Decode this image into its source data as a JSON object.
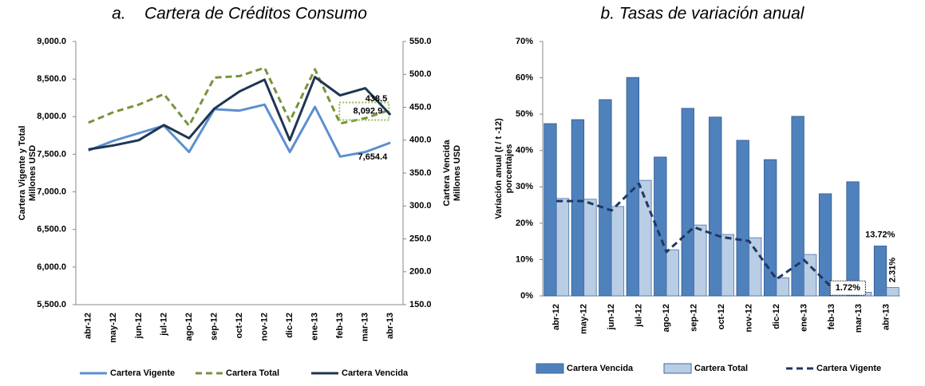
{
  "chart_data": [
    {
      "type": "line",
      "title": "a.    Cartera de Créditos Consumo",
      "categories": [
        "abr-12",
        "may-12",
        "jun-12",
        "jul-12",
        "ago-12",
        "sep-12",
        "oct-12",
        "nov-12",
        "dic-12",
        "ene-13",
        "feb-13",
        "mar-13",
        "abr-13"
      ],
      "ylabel": [
        "Cartera Vigente y Total",
        "Millones USD"
      ],
      "y2label": [
        "Cartera Vencida",
        "Millones USD"
      ],
      "ylim": [
        5500,
        9000
      ],
      "yticks": [
        {
          "value": 5500,
          "label": "5,500.0"
        },
        {
          "value": 6000,
          "label": "6,000.0"
        },
        {
          "value": 6500,
          "label": "6,500.0"
        },
        {
          "value": 7000,
          "label": "7,000.0"
        },
        {
          "value": 7500,
          "label": "7,500.0"
        },
        {
          "value": 8000,
          "label": "8,000.0"
        },
        {
          "value": 8500,
          "label": "8,500.0"
        },
        {
          "value": 9000,
          "label": "9,000.0"
        }
      ],
      "y2lim": [
        150,
        550
      ],
      "y2ticks": [
        {
          "value": 150,
          "label": "150.0"
        },
        {
          "value": 200,
          "label": "200.0"
        },
        {
          "value": 250,
          "label": "250.0"
        },
        {
          "value": 300,
          "label": "300.0"
        },
        {
          "value": 350,
          "label": "350.0"
        },
        {
          "value": 400,
          "label": "400.0"
        },
        {
          "value": 450,
          "label": "450.0"
        },
        {
          "value": 500,
          "label": "500.0"
        },
        {
          "value": 550,
          "label": "550.0"
        }
      ],
      "grid": false,
      "legend": "bottom",
      "series": [
        {
          "name": "Cartera Vigente",
          "color": "#5b8fd0",
          "dash": false,
          "values": [
            7550,
            7680,
            7780,
            7880,
            7530,
            8100,
            8080,
            8160,
            7530,
            8130,
            7470,
            7530,
            7654.4
          ],
          "value_labels": [
            null,
            null,
            null,
            null,
            null,
            null,
            null,
            null,
            null,
            null,
            null,
            null,
            "7,654.4"
          ]
        },
        {
          "name": "Cartera Total",
          "color": "#77933c",
          "dash": true,
          "values": [
            7920,
            8060,
            8160,
            8300,
            7880,
            8520,
            8540,
            8650,
            7940,
            8630,
            7910,
            7980,
            8092.9
          ],
          "value_labels": [
            null,
            null,
            null,
            null,
            null,
            null,
            null,
            null,
            null,
            null,
            null,
            null,
            "8,092.9"
          ]
        },
        {
          "name": "Cartera Vencida",
          "color": "#1f3552",
          "dash": false,
          "axis": "y2",
          "values": [
            386,
            392,
            400,
            423,
            403,
            448,
            474,
            492,
            400,
            496,
            468,
            479,
            438.5
          ],
          "value_labels": [
            null,
            null,
            null,
            null,
            null,
            null,
            null,
            null,
            null,
            null,
            null,
            null,
            "438.5"
          ]
        }
      ]
    },
    {
      "type": "bar",
      "title": "b. Tasas de variación anual",
      "categories": [
        "abr-12",
        "may-12",
        "jun-12",
        "jul-12",
        "ago-12",
        "sep-12",
        "oct-12",
        "nov-12",
        "dic-12",
        "ene-13",
        "feb-13",
        "mar-13",
        "abr-13"
      ],
      "ylabel": [
        "Variación anual (t / t -12)",
        "porcentajes"
      ],
      "ylim": [
        0,
        70
      ],
      "yticks": [
        {
          "value": 0,
          "label": "0%"
        },
        {
          "value": 10,
          "label": "10%"
        },
        {
          "value": 20,
          "label": "20%"
        },
        {
          "value": 30,
          "label": "30%"
        },
        {
          "value": 40,
          "label": "40%"
        },
        {
          "value": 50,
          "label": "50%"
        },
        {
          "value": 60,
          "label": "60%"
        },
        {
          "value": 70,
          "label": "70%"
        }
      ],
      "grid": false,
      "legend": "bottom",
      "series": [
        {
          "name": "Cartera Vencida",
          "color": "#4f81bd",
          "type": "bar",
          "values": [
            47.4,
            48.5,
            54,
            60.1,
            38.2,
            51.6,
            49.2,
            42.8,
            37.5,
            49.4,
            28.1,
            31.4,
            13.72
          ],
          "value_labels": [
            null,
            null,
            null,
            null,
            null,
            null,
            null,
            null,
            null,
            null,
            null,
            null,
            "13.72%"
          ]
        },
        {
          "name": "Cartera Total",
          "color": "#b9cde5",
          "type": "bar",
          "values": [
            26.8,
            26.6,
            24.6,
            31.8,
            12.7,
            19.5,
            16.9,
            16,
            5,
            11.4,
            3.5,
            1,
            2.31
          ],
          "value_labels": [
            null,
            null,
            null,
            null,
            null,
            null,
            null,
            null,
            null,
            null,
            null,
            null,
            "2.31%"
          ]
        },
        {
          "name": "Cartera Vigente",
          "color": "#1f3864",
          "type": "line",
          "dash": true,
          "values": [
            26.1,
            26.1,
            23.5,
            30.9,
            12.1,
            18.9,
            16.2,
            15.1,
            4.6,
            9.9,
            2.4,
            1.72,
            null
          ],
          "value_labels": [
            null,
            null,
            null,
            null,
            null,
            null,
            null,
            null,
            null,
            null,
            null,
            "1.72%",
            null
          ]
        }
      ]
    }
  ]
}
